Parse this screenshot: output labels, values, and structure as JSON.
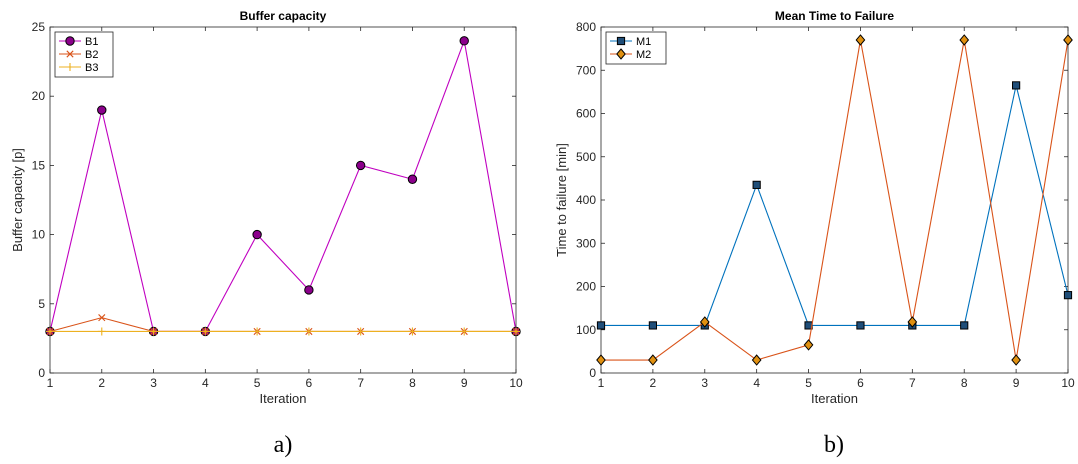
{
  "chart_data": [
    {
      "type": "line",
      "title": "Buffer capacity",
      "xlabel": "Iteration",
      "ylabel": "Buffer capacity [p]",
      "xlim": [
        1,
        10
      ],
      "ylim": [
        0,
        25
      ],
      "xticks": [
        "1",
        "2",
        "3",
        "4",
        "5",
        "6",
        "7",
        "8",
        "9",
        "10"
      ],
      "yticks": [
        "0",
        "5",
        "10",
        "15",
        "20",
        "25"
      ],
      "x": [
        1,
        2,
        3,
        4,
        5,
        6,
        7,
        8,
        9,
        10
      ],
      "legend": "top-left",
      "grid": false,
      "series": [
        {
          "name": "B1",
          "values": [
            3,
            19,
            3,
            3,
            10,
            6,
            15,
            14,
            24,
            3
          ],
          "color": "#C000C0",
          "fill": "#8B008B",
          "marker": "circle"
        },
        {
          "name": "B2",
          "values": [
            3,
            4,
            3,
            3,
            3,
            3,
            3,
            3,
            3,
            3
          ],
          "color": "#D95319",
          "fill": "none",
          "marker": "x"
        },
        {
          "name": "B3",
          "values": [
            3,
            3,
            3,
            3,
            3,
            3,
            3,
            3,
            3,
            3
          ],
          "color": "#EDB120",
          "fill": "none",
          "marker": "plus"
        }
      ],
      "caption": "a)"
    },
    {
      "type": "line",
      "title": "Mean Time to Failure",
      "xlabel": "Iteration",
      "ylabel": "Time to failure [min]",
      "xlim": [
        1,
        10
      ],
      "ylim": [
        0,
        800
      ],
      "xticks": [
        "1",
        "2",
        "3",
        "4",
        "5",
        "6",
        "7",
        "8",
        "9",
        "10"
      ],
      "yticks": [
        "0",
        "100",
        "200",
        "300",
        "400",
        "500",
        "600",
        "700",
        "800"
      ],
      "x": [
        1,
        2,
        3,
        4,
        5,
        6,
        7,
        8,
        9,
        10
      ],
      "legend": "top-left",
      "grid": false,
      "series": [
        {
          "name": "M1",
          "values": [
            110,
            110,
            110,
            435,
            110,
            110,
            110,
            110,
            665,
            180
          ],
          "color": "#0072BD",
          "fill": "#1F4E79",
          "marker": "square"
        },
        {
          "name": "M2",
          "values": [
            30,
            30,
            118,
            30,
            65,
            770,
            118,
            770,
            30,
            770
          ],
          "color": "#D95319",
          "fill": "#E09010",
          "marker": "diamond"
        }
      ],
      "caption": "b)"
    }
  ]
}
